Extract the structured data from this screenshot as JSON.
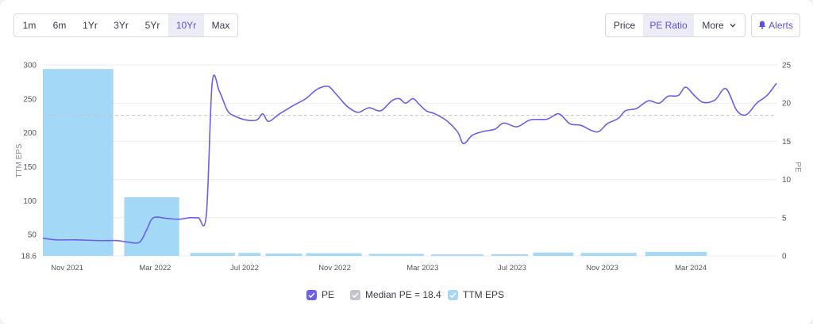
{
  "toolbar": {
    "ranges": [
      "1m",
      "6m",
      "1Yr",
      "3Yr",
      "5Yr",
      "10Yr",
      "Max"
    ],
    "active_range": "10Yr",
    "metrics": [
      "Price",
      "PE Ratio",
      "More"
    ],
    "active_metric": "PE Ratio",
    "alerts_label": "Alerts"
  },
  "colors": {
    "pe_line": "#6a5fe8",
    "eps_bar": "#a3d8f6",
    "median_line": "#c4c4cc",
    "accent": "#5b4fe8"
  },
  "legend": {
    "pe": "PE",
    "median": "Median PE = 18.4",
    "eps": "TTM EPS"
  },
  "chart_data": {
    "type": "line+bar",
    "left_axis": {
      "label": "TTM EPS",
      "ticks": [
        "300",
        "250",
        "200",
        "150",
        "100",
        "50",
        "18.6"
      ],
      "ylim": [
        18.6,
        300
      ]
    },
    "right_axis": {
      "label": "PE",
      "ticks": [
        "25",
        "20",
        "15",
        "10",
        "5",
        "0"
      ],
      "ylim": [
        0,
        25
      ]
    },
    "x_ticks": [
      "Nov 2021",
      "Mar 2022",
      "Jul 2022",
      "Nov 2022",
      "Mar 2023",
      "Jul 2023",
      "Nov 2023",
      "Mar 2024"
    ],
    "median_pe": 18.4,
    "eps_bars": [
      {
        "start": "2021-10-01",
        "end": "2022-01-05",
        "value": 294
      },
      {
        "start": "2022-01-20",
        "end": "2022-04-05",
        "value": 105
      },
      {
        "start": "2022-04-20",
        "end": "2022-06-20",
        "value": 23
      },
      {
        "start": "2022-06-25",
        "end": "2022-07-25",
        "value": 23
      },
      {
        "start": "2022-08-01",
        "end": "2022-09-20",
        "value": 22
      },
      {
        "start": "2022-09-25",
        "end": "2022-12-10",
        "value": 22.5
      },
      {
        "start": "2022-12-20",
        "end": "2023-03-05",
        "value": 21.5
      },
      {
        "start": "2023-03-15",
        "end": "2023-05-25",
        "value": 20.8
      },
      {
        "start": "2023-06-05",
        "end": "2023-07-25",
        "value": 21
      },
      {
        "start": "2023-08-01",
        "end": "2023-09-25",
        "value": 23.5
      },
      {
        "start": "2023-10-05",
        "end": "2023-12-20",
        "value": 23
      },
      {
        "start": "2024-01-01",
        "end": "2024-03-25",
        "value": 24.5
      }
    ],
    "pe_series": [
      [
        "2021-10-01",
        2.3
      ],
      [
        "2021-10-20",
        2.1
      ],
      [
        "2021-11-15",
        2.1
      ],
      [
        "2021-12-15",
        2.0
      ],
      [
        "2022-01-10",
        2.0
      ],
      [
        "2022-01-25",
        1.8
      ],
      [
        "2022-02-10",
        1.8
      ],
      [
        "2022-02-20",
        3.5
      ],
      [
        "2022-03-01",
        5.0
      ],
      [
        "2022-03-20",
        4.9
      ],
      [
        "2022-04-05",
        4.8
      ],
      [
        "2022-04-20",
        5.0
      ],
      [
        "2022-05-01",
        5.0
      ],
      [
        "2022-05-12",
        5.3
      ],
      [
        "2022-05-20",
        22.6
      ],
      [
        "2022-05-30",
        21.5
      ],
      [
        "2022-06-10",
        19.0
      ],
      [
        "2022-06-20",
        18.3
      ],
      [
        "2022-07-05",
        17.8
      ],
      [
        "2022-07-20",
        17.8
      ],
      [
        "2022-07-28",
        18.6
      ],
      [
        "2022-08-05",
        17.6
      ],
      [
        "2022-08-20",
        18.6
      ],
      [
        "2022-09-10",
        19.8
      ],
      [
        "2022-09-25",
        20.6
      ],
      [
        "2022-10-10",
        21.8
      ],
      [
        "2022-10-25",
        22.2
      ],
      [
        "2022-11-05",
        21.2
      ],
      [
        "2022-11-20",
        19.6
      ],
      [
        "2022-12-05",
        18.8
      ],
      [
        "2022-12-20",
        19.4
      ],
      [
        "2023-01-05",
        19.0
      ],
      [
        "2023-01-20",
        20.3
      ],
      [
        "2023-01-30",
        20.6
      ],
      [
        "2023-02-08",
        20.0
      ],
      [
        "2023-02-18",
        20.6
      ],
      [
        "2023-02-26",
        19.9
      ],
      [
        "2023-03-08",
        19.0
      ],
      [
        "2023-03-20",
        18.6
      ],
      [
        "2023-04-05",
        17.7
      ],
      [
        "2023-04-20",
        16.2
      ],
      [
        "2023-04-28",
        14.7
      ],
      [
        "2023-05-10",
        15.8
      ],
      [
        "2023-05-25",
        16.3
      ],
      [
        "2023-06-10",
        16.6
      ],
      [
        "2023-06-22",
        17.4
      ],
      [
        "2023-07-10",
        16.9
      ],
      [
        "2023-07-28",
        17.8
      ],
      [
        "2023-08-20",
        17.9
      ],
      [
        "2023-09-05",
        18.6
      ],
      [
        "2023-09-20",
        17.3
      ],
      [
        "2023-10-05",
        17.1
      ],
      [
        "2023-10-20",
        16.4
      ],
      [
        "2023-10-30",
        16.3
      ],
      [
        "2023-11-10",
        17.3
      ],
      [
        "2023-11-25",
        18.0
      ],
      [
        "2023-12-05",
        19.0
      ],
      [
        "2023-12-20",
        19.3
      ],
      [
        "2024-01-05",
        20.3
      ],
      [
        "2024-01-20",
        20.0
      ],
      [
        "2024-02-01",
        20.9
      ],
      [
        "2024-02-15",
        21.0
      ],
      [
        "2024-02-25",
        22.1
      ],
      [
        "2024-03-08",
        21.0
      ],
      [
        "2024-03-20",
        20.1
      ],
      [
        "2024-04-05",
        20.4
      ],
      [
        "2024-04-20",
        21.9
      ],
      [
        "2024-05-05",
        19.0
      ],
      [
        "2024-05-18",
        18.5
      ],
      [
        "2024-06-01",
        20.0
      ],
      [
        "2024-06-15",
        21.0
      ],
      [
        "2024-06-28",
        22.6
      ]
    ]
  }
}
